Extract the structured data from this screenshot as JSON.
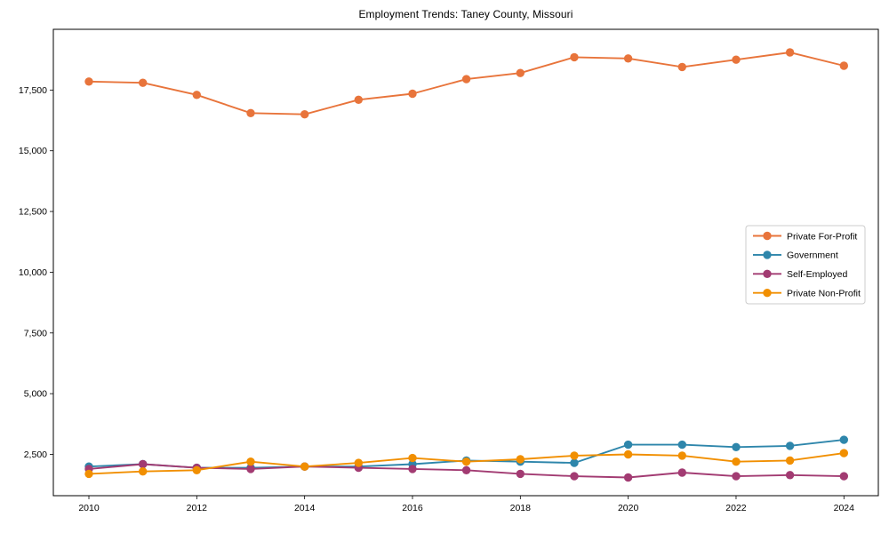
{
  "title": "Employment Trends: Taney County, Missouri",
  "chart_data": {
    "type": "line",
    "title": "Employment Trends: Taney County, Missouri",
    "xlabel": "",
    "ylabel": "",
    "grid": false,
    "legend_position": "center right",
    "x": [
      2010,
      2011,
      2012,
      2013,
      2014,
      2015,
      2016,
      2017,
      2018,
      2019,
      2020,
      2021,
      2022,
      2023,
      2024
    ],
    "xticks": [
      2010,
      2012,
      2014,
      2016,
      2018,
      2020,
      2022,
      2024
    ],
    "yticks": [
      2500,
      5000,
      7500,
      10000,
      12500,
      15000,
      17500
    ],
    "ylim": [
      800,
      20000
    ],
    "series": [
      {
        "name": "Private For-Profit",
        "color": "#E8743B",
        "values": [
          17850,
          17800,
          17300,
          16550,
          16500,
          17100,
          17350,
          17950,
          18200,
          18850,
          18800,
          18450,
          18750,
          19050,
          18500
        ]
      },
      {
        "name": "Government",
        "color": "#2E86AB",
        "values": [
          2000,
          2100,
          1950,
          1950,
          2000,
          2000,
          2100,
          2250,
          2200,
          2150,
          2900,
          2900,
          2800,
          2850,
          3100
        ]
      },
      {
        "name": "Self-Employed",
        "color": "#A23B72",
        "values": [
          1900,
          2100,
          1950,
          1900,
          2000,
          1950,
          1900,
          1850,
          1700,
          1600,
          1550,
          1750,
          1600,
          1650,
          1600
        ]
      },
      {
        "name": "Private Non-Profit",
        "color": "#F18F01",
        "values": [
          1700,
          1800,
          1850,
          2200,
          2000,
          2150,
          2350,
          2200,
          2300,
          2450,
          2500,
          2450,
          2200,
          2250,
          2550
        ]
      }
    ]
  }
}
